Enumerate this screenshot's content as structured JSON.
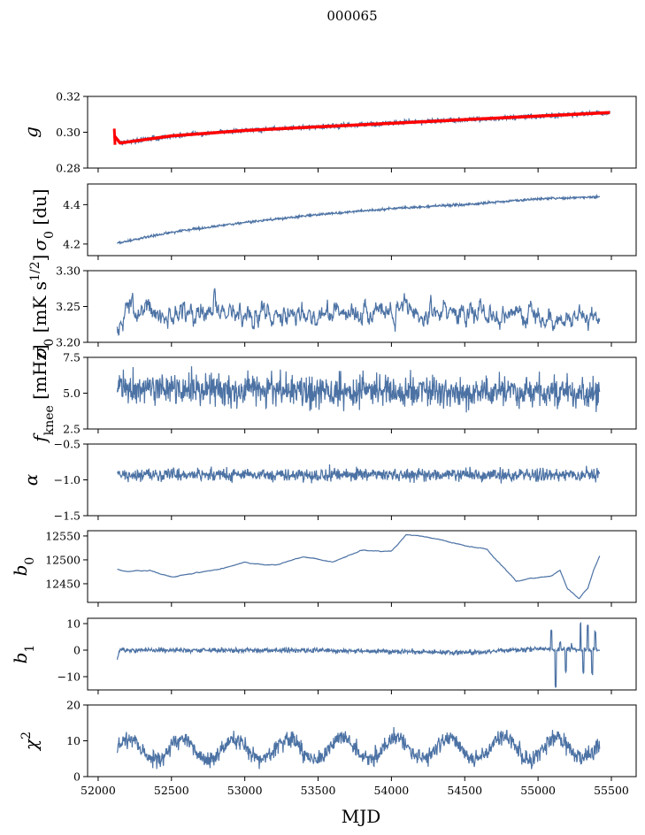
{
  "chart_data": {
    "type": "line",
    "title": "000065",
    "xlabel": "MJD",
    "xlim": [
      51928,
      55669
    ],
    "xticks": [
      52000,
      52500,
      53000,
      53500,
      54000,
      54500,
      55000,
      55500
    ],
    "line_color": "#4c72a4",
    "fit_color": "#ff0000",
    "panels": [
      {
        "name": "g",
        "label": [
          {
            "t": "g",
            "i": true
          }
        ],
        "ylim": [
          0.28,
          0.32
        ],
        "yticks": [
          0.28,
          0.3,
          0.32
        ],
        "ytick_labels": [
          "0.28",
          "0.30",
          "0.32"
        ],
        "points": [
          [
            52110,
            0.298
          ],
          [
            52150,
            0.294
          ],
          [
            52500,
            0.298
          ],
          [
            53000,
            0.301
          ],
          [
            53500,
            0.303
          ],
          [
            54000,
            0.305
          ],
          [
            54500,
            0.307
          ],
          [
            55000,
            0.309
          ],
          [
            55490,
            0.311
          ]
        ],
        "noise": 0.0007,
        "fit": true
      },
      {
        "name": "sigma0-du",
        "label": [
          {
            "t": "σ",
            "i": true
          },
          {
            "t": "0",
            "sub": true
          },
          {
            "t": " [du]"
          }
        ],
        "ylim": [
          4.141,
          4.505
        ],
        "yticks": [
          4.2,
          4.4
        ],
        "ytick_labels": [
          "4.2",
          "4.4"
        ],
        "points": [
          [
            52130,
            4.205
          ],
          [
            52500,
            4.26
          ],
          [
            53000,
            4.31
          ],
          [
            53500,
            4.35
          ],
          [
            54000,
            4.38
          ],
          [
            54500,
            4.4
          ],
          [
            55000,
            4.43
          ],
          [
            55420,
            4.44
          ]
        ],
        "noise": 0.003
      },
      {
        "name": "sigma0-mk",
        "label": [
          {
            "t": "σ",
            "i": true
          },
          {
            "t": "0",
            "sub": true
          },
          {
            "t": " [mK s"
          },
          {
            "t": "1/2",
            "sup": true
          },
          {
            "t": "]"
          }
        ],
        "ylim": [
          3.2,
          3.3
        ],
        "yticks": [
          3.2,
          3.25,
          3.3
        ],
        "ytick_labels": [
          "3.20",
          "3.25",
          "3.30"
        ],
        "points": [
          [
            52130,
            3.222
          ],
          [
            52200,
            3.24
          ],
          [
            53000,
            3.24
          ],
          [
            54000,
            3.238
          ],
          [
            55000,
            3.24
          ],
          [
            55420,
            3.228
          ]
        ],
        "noise": 0.012,
        "smooth": true
      },
      {
        "name": "fknee",
        "label": [
          {
            "t": "f",
            "i": true
          },
          {
            "t": "knee",
            "sub": true
          },
          {
            "t": " [mHz]"
          }
        ],
        "ylim": [
          2.5,
          7.5
        ],
        "yticks": [
          2.5,
          5.0,
          7.5
        ],
        "ytick_labels": [
          "2.5",
          "5.0",
          "7.5"
        ],
        "points": [
          [
            52130,
            5.4
          ],
          [
            53000,
            5.2
          ],
          [
            54000,
            5.1
          ],
          [
            55000,
            5.0
          ],
          [
            55420,
            5.0
          ]
        ],
        "noise": 0.55
      },
      {
        "name": "alpha",
        "label": [
          {
            "t": "α",
            "i": true
          }
        ],
        "ylim": [
          -1.5,
          -0.5
        ],
        "yticks": [
          -1.5,
          -1.0,
          -0.5
        ],
        "ytick_labels": [
          "−1.5",
          "−1.0",
          "−0.5"
        ],
        "points": [
          [
            52130,
            -0.93
          ],
          [
            55420,
            -0.93
          ]
        ],
        "noise": 0.045
      },
      {
        "name": "b0",
        "label": [
          {
            "t": "b",
            "i": true
          },
          {
            "t": "0",
            "sub": true
          }
        ],
        "ylim": [
          12411,
          12561
        ],
        "yticks": [
          12450,
          12500,
          12550
        ],
        "ytick_labels": [
          "12450",
          "12500",
          "12550"
        ],
        "points": [
          [
            52130,
            12480
          ],
          [
            52200,
            12475
          ],
          [
            52350,
            12478
          ],
          [
            52500,
            12465
          ],
          [
            52800,
            12480
          ],
          [
            53000,
            12495
          ],
          [
            53200,
            12488
          ],
          [
            53400,
            12505
          ],
          [
            53600,
            12495
          ],
          [
            53800,
            12520
          ],
          [
            54000,
            12518
          ],
          [
            54100,
            12553
          ],
          [
            54300,
            12545
          ],
          [
            54500,
            12530
          ],
          [
            54650,
            12522
          ],
          [
            54850,
            12455
          ],
          [
            55000,
            12463
          ],
          [
            55100,
            12466
          ],
          [
            55150,
            12476
          ],
          [
            55200,
            12440
          ],
          [
            55280,
            12420
          ],
          [
            55340,
            12440
          ],
          [
            55380,
            12480
          ],
          [
            55420,
            12508
          ]
        ],
        "noise": 0.8
      },
      {
        "name": "b1",
        "label": [
          {
            "t": "b",
            "i": true
          },
          {
            "t": "1",
            "sub": true
          }
        ],
        "ylim": [
          -15,
          12
        ],
        "yticks": [
          -10,
          0,
          10
        ],
        "ytick_labels": [
          "−10",
          "0",
          "10"
        ],
        "points": [
          [
            52130,
            -3
          ],
          [
            52150,
            0
          ],
          [
            53500,
            0
          ],
          [
            54500,
            -1
          ],
          [
            55000,
            0.5
          ],
          [
            55420,
            0
          ]
        ],
        "noise": 0.45,
        "spikes": [
          [
            55090,
            7
          ],
          [
            55120,
            -14
          ],
          [
            55150,
            3
          ],
          [
            55190,
            -8
          ],
          [
            55230,
            2
          ],
          [
            55290,
            10
          ],
          [
            55310,
            -8
          ],
          [
            55340,
            9
          ],
          [
            55370,
            -9
          ],
          [
            55390,
            7
          ]
        ]
      },
      {
        "name": "chi2",
        "label": [
          {
            "t": "χ",
            "i": true
          },
          {
            "t": "2",
            "sup": true
          }
        ],
        "ylim": [
          0,
          20
        ],
        "yticks": [
          0,
          10,
          20
        ],
        "ytick_labels": [
          "0",
          "10",
          "20"
        ],
        "points": [
          [
            52130,
            7.5
          ],
          [
            55420,
            8
          ]
        ],
        "noise": 1.2,
        "seasonal_amplitude": 3,
        "period_days": 365.25
      }
    ]
  }
}
